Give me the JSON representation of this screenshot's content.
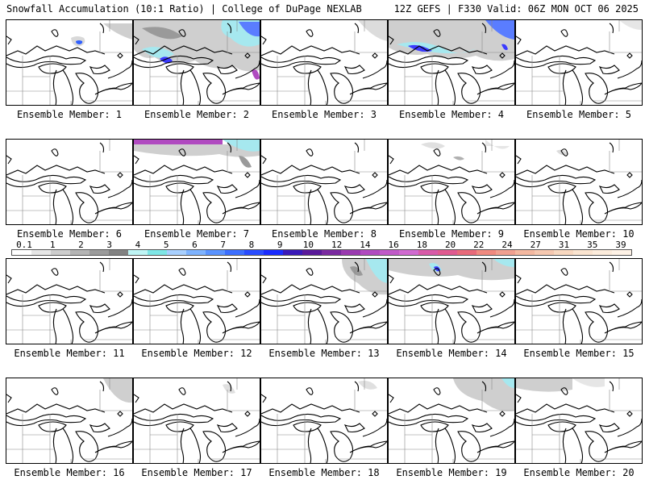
{
  "header": {
    "title": "Snowfall Accumulation (10:1 Ratio) | College of DuPage NEXLAB",
    "run_info": "12Z GEFS | F330 Valid: 06Z MON OCT 06 2025"
  },
  "legend": {
    "labels": [
      "0.1",
      "1",
      "2",
      "3",
      "4",
      "5",
      "6",
      "7",
      "8",
      "9",
      "10",
      "12",
      "14",
      "16",
      "18",
      "20",
      "22",
      "24",
      "27",
      "31",
      "35",
      "39"
    ],
    "colors": [
      "#ffffff",
      "#e6e6e6",
      "#cdcdcd",
      "#b4b4b4",
      "#9b9b9b",
      "#828282",
      "#bff5f5",
      "#7ee6e6",
      "#a8d0ff",
      "#7eb3ff",
      "#5a93ff",
      "#3c6fff",
      "#2a4dff",
      "#1a2cff",
      "#3a1ab8",
      "#5a1a9a",
      "#7a2aa0",
      "#9a3ab0",
      "#b04ac0",
      "#c05ac8",
      "#d06ad0",
      "#d85aa8",
      "#e05a90",
      "#e86a7a",
      "#f08a80",
      "#f0a090",
      "#f4b8a0",
      "#f6c8b0",
      "#f8d8c0",
      "#fae4d0",
      "#fcecdc",
      "#fef2e6"
    ]
  },
  "panels": [
    {
      "label": "Ensemble Member: 1"
    },
    {
      "label": "Ensemble Member: 2"
    },
    {
      "label": "Ensemble Member: 3"
    },
    {
      "label": "Ensemble Member: 4"
    },
    {
      "label": "Ensemble Member: 5"
    },
    {
      "label": "Ensemble Member: 6"
    },
    {
      "label": "Ensemble Member: 7"
    },
    {
      "label": "Ensemble Member: 8"
    },
    {
      "label": "Ensemble Member: 9"
    },
    {
      "label": "Ensemble Member: 10"
    },
    {
      "label": "Ensemble Member: 11"
    },
    {
      "label": "Ensemble Member: 12"
    },
    {
      "label": "Ensemble Member: 13"
    },
    {
      "label": "Ensemble Member: 14"
    },
    {
      "label": "Ensemble Member: 15"
    },
    {
      "label": "Ensemble Member: 16"
    },
    {
      "label": "Ensemble Member: 17"
    },
    {
      "label": "Ensemble Member: 18"
    },
    {
      "label": "Ensemble Member: 19"
    },
    {
      "label": "Ensemble Member: 20"
    }
  ]
}
